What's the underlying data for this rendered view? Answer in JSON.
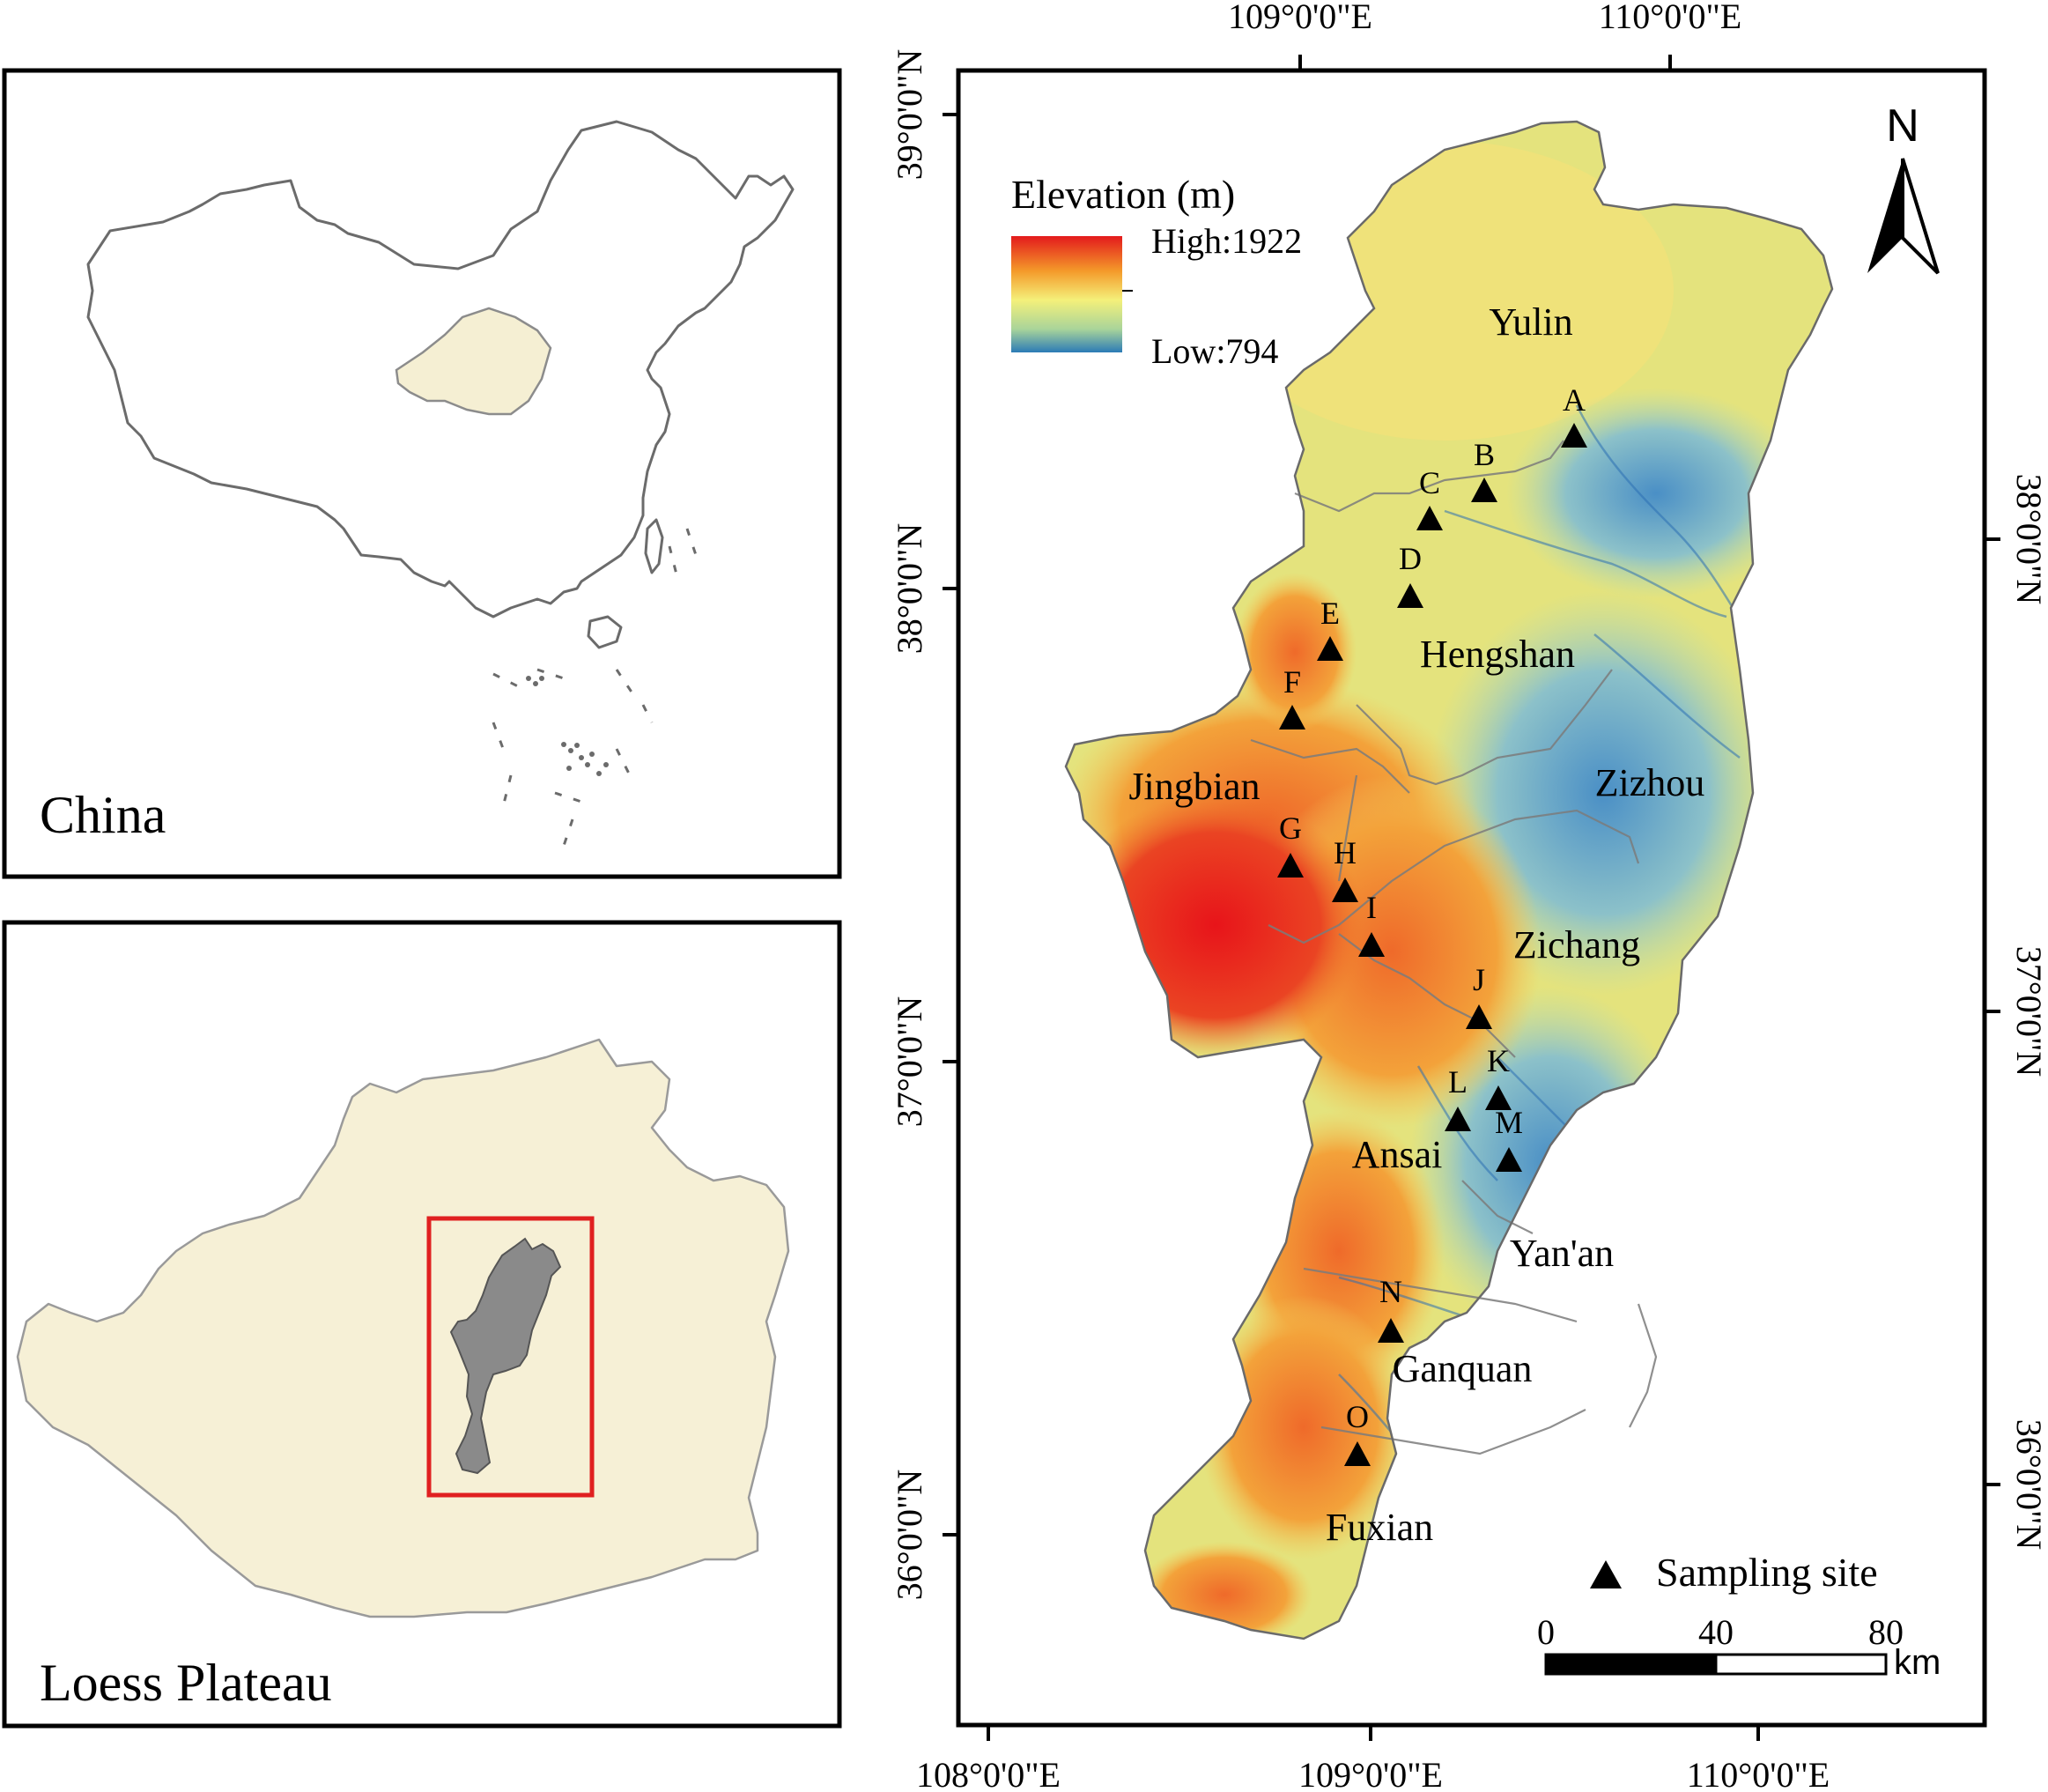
{
  "panels": {
    "china": {
      "label": "China"
    },
    "loess": {
      "label": "Loess Plateau"
    }
  },
  "main_map": {
    "top_lon_labels": [
      "109°0'0\"E",
      "110°0'0\"E"
    ],
    "bottom_lon_labels": [
      "108°0'0\"E",
      "109°0'0\"E",
      "110°0'0\"E"
    ],
    "left_lat_labels": [
      "39°0'0\"N",
      "38°0'0\"N",
      "37°0'0\"N",
      "36°0'0\"N"
    ],
    "right_lat_labels": [
      "38°0'0\"N",
      "37°0'0\"N",
      "36°0'0\"N"
    ],
    "north_arrow": {
      "label": "N",
      "icon": "north-arrow-icon"
    },
    "legend": {
      "title": "Elevation (m)",
      "high": "High:1922",
      "low": "Low:794",
      "colors": [
        "#e31a1c",
        "#f49a2a",
        "#f4f07a",
        "#a9d49a",
        "#2c7bb6"
      ]
    },
    "site_legend": {
      "label": "Sampling site"
    },
    "scale_bar": {
      "labels": [
        "0",
        "40",
        "80"
      ],
      "unit": "km"
    },
    "counties": [
      "Yulin",
      "Hengshan",
      "Zizhou",
      "Jingbian",
      "Zichang",
      "Ansai",
      "Yan'an",
      "Ganquan",
      "Fuxian"
    ],
    "sites": [
      "A",
      "B",
      "C",
      "D",
      "E",
      "F",
      "G",
      "H",
      "I",
      "J",
      "K",
      "L",
      "M",
      "N",
      "O"
    ]
  }
}
